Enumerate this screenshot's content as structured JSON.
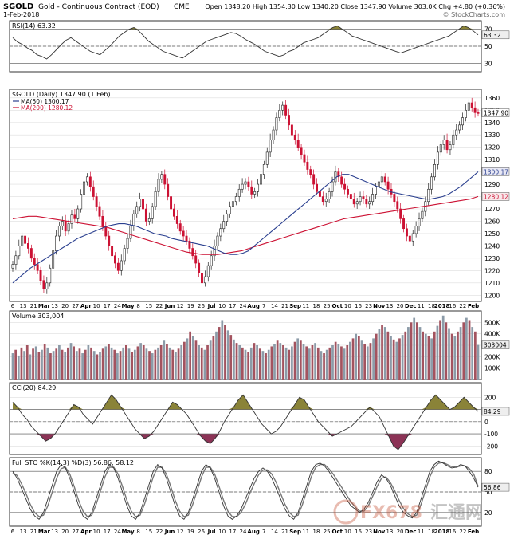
{
  "header": {
    "symbol": "$GOLD",
    "name": "Gold - Continuous Contract (EOD)",
    "exchange": "CME",
    "date": "1-Feb-2018",
    "ohlc": "Open 1348.20  High 1354.30  Low 1340.20  Close 1347.90  Volume 303.0K  Chg +4.80 (+0.36%)",
    "watermark": "© StockCharts.com"
  },
  "colors": {
    "up": "#222222",
    "down": "#cc1133",
    "ma50": "#2a3f8f",
    "ma200": "#cc1133",
    "volume_up": "#8c9ba8",
    "volume_down": "#a3535f",
    "osc_fill": "#8a8338",
    "osc_fill_low": "#8c3356",
    "sto_k": "#333333",
    "sto_d": "#777777",
    "grid": "#dddddd",
    "frame": "#333333"
  },
  "chart_data": [
    {
      "type": "line",
      "title": "RSI(14) 63.32",
      "value_label": "63.32",
      "ylim": [
        20,
        80
      ],
      "yticks": [
        "30",
        "50",
        "70"
      ],
      "levels": [
        30,
        70
      ],
      "series": [
        {
          "values": [
            60,
            55,
            52,
            48,
            45,
            40,
            38,
            35,
            40,
            46,
            52,
            57,
            60,
            56,
            52,
            48,
            44,
            42,
            40,
            45,
            50,
            56,
            62,
            66,
            70,
            72,
            68,
            62,
            56,
            52,
            48,
            44,
            42,
            40,
            38,
            36,
            40,
            44,
            48,
            52,
            56,
            58,
            60,
            62,
            64,
            66,
            65,
            62,
            58,
            55,
            52,
            48,
            44,
            42,
            40,
            38,
            40,
            44,
            46,
            50,
            54,
            56,
            58,
            60,
            64,
            68,
            72,
            74,
            70,
            66,
            62,
            60,
            58,
            56,
            54,
            52,
            50,
            48,
            46,
            44,
            42,
            44,
            46,
            48,
            50,
            52,
            54,
            56,
            58,
            60,
            62,
            66,
            70,
            74,
            72,
            68,
            63.32
          ]
        }
      ]
    },
    {
      "type": "candlestick",
      "title": "$GOLD (Daily) 1347.90 (1 Feb)",
      "ma50_label": "MA(50) 1300.17",
      "ma200_label": "MA(200) 1280.12",
      "close_label": "1347.90",
      "ma50_tag": "1300.17",
      "ma200_tag": "1280.12",
      "ylim": [
        1195,
        1367
      ],
      "yticks": [
        "1200",
        "1210",
        "1220",
        "1230",
        "1240",
        "1250",
        "1260",
        "1270",
        "1280",
        "1290",
        "1300",
        "1310",
        "1320",
        "1330",
        "1340",
        "1350",
        "1360"
      ],
      "close": [
        1225,
        1232,
        1240,
        1248,
        1242,
        1238,
        1230,
        1225,
        1220,
        1212,
        1205,
        1210,
        1222,
        1236,
        1248,
        1256,
        1260,
        1252,
        1258,
        1265,
        1262,
        1270,
        1282,
        1292,
        1296,
        1288,
        1280,
        1272,
        1264,
        1256,
        1248,
        1240,
        1232,
        1226,
        1220,
        1228,
        1238,
        1246,
        1256,
        1266,
        1272,
        1278,
        1270,
        1260,
        1262,
        1272,
        1284,
        1294,
        1298,
        1290,
        1280,
        1270,
        1264,
        1258,
        1252,
        1248,
        1244,
        1238,
        1232,
        1226,
        1218,
        1210,
        1215,
        1224,
        1232,
        1240,
        1248,
        1254,
        1260,
        1266,
        1272,
        1276,
        1280,
        1286,
        1290,
        1292,
        1288,
        1282,
        1284,
        1290,
        1298,
        1306,
        1316,
        1326,
        1334,
        1344,
        1350,
        1354,
        1346,
        1338,
        1330,
        1326,
        1320,
        1314,
        1308,
        1302,
        1298,
        1290,
        1284,
        1280,
        1276,
        1278,
        1284,
        1292,
        1300,
        1296,
        1290,
        1286,
        1282,
        1278,
        1274,
        1276,
        1280,
        1278,
        1274,
        1276,
        1282,
        1288,
        1292,
        1296,
        1292,
        1286,
        1282,
        1276,
        1270,
        1262,
        1254,
        1248,
        1244,
        1250,
        1256,
        1262,
        1268,
        1276,
        1286,
        1296,
        1306,
        1316,
        1322,
        1326,
        1318,
        1322,
        1330,
        1334,
        1338,
        1344,
        1350,
        1356,
        1352,
        1348,
        1347.9
      ],
      "ma50": [
        1210,
        1214,
        1218,
        1222,
        1225,
        1228,
        1231,
        1234,
        1237,
        1240,
        1243,
        1246,
        1248,
        1250,
        1252,
        1254,
        1256,
        1257,
        1258,
        1258,
        1257,
        1256,
        1254,
        1252,
        1250,
        1249,
        1248,
        1246,
        1245,
        1244,
        1243,
        1242,
        1241,
        1240,
        1238,
        1236,
        1234,
        1233,
        1233,
        1234,
        1236,
        1240,
        1244,
        1248,
        1252,
        1256,
        1260,
        1264,
        1268,
        1272,
        1276,
        1280,
        1284,
        1288,
        1292,
        1296,
        1298,
        1298,
        1296,
        1294,
        1292,
        1290,
        1288,
        1286,
        1284,
        1283,
        1282,
        1281,
        1280,
        1279,
        1278,
        1278,
        1279,
        1280,
        1282,
        1285,
        1288,
        1292,
        1296,
        1300.17
      ],
      "ma200": [
        1262,
        1263,
        1264,
        1264,
        1263,
        1262,
        1261,
        1260,
        1259,
        1258,
        1257,
        1256,
        1255,
        1253,
        1251,
        1249,
        1247,
        1245,
        1243,
        1241,
        1239,
        1237,
        1235,
        1234,
        1233,
        1233,
        1233,
        1234,
        1235,
        1236,
        1238,
        1240,
        1242,
        1244,
        1246,
        1248,
        1250,
        1252,
        1254,
        1256,
        1258,
        1260,
        1262,
        1263,
        1264,
        1265,
        1266,
        1267,
        1268,
        1269,
        1270,
        1271,
        1272,
        1273,
        1274,
        1275,
        1276,
        1277,
        1278,
        1280.12
      ]
    },
    {
      "type": "bar",
      "title": "Volume 303,004",
      "value_label": "303004",
      "ylim": [
        0,
        600
      ],
      "yticks": [
        "100K",
        "200K",
        "300K",
        "400K",
        "500K"
      ],
      "values": [
        230,
        260,
        210,
        280,
        250,
        300,
        220,
        270,
        290,
        240,
        260,
        310,
        280,
        230,
        250,
        270,
        300,
        260,
        240,
        280,
        320,
        290,
        250,
        270,
        230,
        260,
        300,
        280,
        250,
        220,
        240,
        270,
        290,
        310,
        280,
        260,
        230,
        250,
        280,
        300,
        270,
        240,
        260,
        290,
        320,
        300,
        270,
        250,
        230,
        260,
        280,
        300,
        340,
        310,
        280,
        260,
        240,
        270,
        300,
        330,
        360,
        420,
        380,
        340,
        300,
        280,
        260,
        300,
        340,
        380,
        420,
        460,
        520,
        480,
        430,
        390,
        350,
        320,
        300,
        280,
        260,
        240,
        280,
        320,
        300,
        270,
        250,
        230,
        260,
        290,
        310,
        340,
        320,
        300,
        280,
        260,
        290,
        330,
        360,
        340,
        310,
        290,
        270,
        300,
        320,
        280,
        250,
        230,
        260,
        280,
        300,
        330,
        310,
        290,
        270,
        300,
        330,
        360,
        400,
        380,
        340,
        310,
        290,
        320,
        360,
        400,
        440,
        480,
        460,
        420,
        380,
        350,
        330,
        360,
        390,
        420,
        460,
        500,
        540,
        500,
        460,
        420,
        400,
        380,
        360,
        420,
        470,
        520,
        560,
        500,
        450,
        400,
        380,
        420,
        460,
        500,
        540,
        520,
        460,
        420,
        303
      ]
    },
    {
      "type": "line",
      "title": "CCI(20) 84.29",
      "value_label": "84.29",
      "ylim": [
        -270,
        320
      ],
      "yticks": [
        "-200",
        "-100",
        "0",
        "100",
        "200"
      ],
      "levels": [
        -100,
        100
      ],
      "series": [
        {
          "values": [
            160,
            120,
            60,
            20,
            -40,
            -80,
            -120,
            -160,
            -140,
            -100,
            -40,
            20,
            80,
            140,
            120,
            60,
            20,
            -20,
            40,
            100,
            160,
            220,
            180,
            120,
            60,
            0,
            -60,
            -100,
            -140,
            -120,
            -80,
            -20,
            40,
            100,
            160,
            140,
            100,
            60,
            0,
            -60,
            -120,
            -160,
            -180,
            -140,
            -80,
            0,
            60,
            120,
            180,
            220,
            160,
            100,
            40,
            -20,
            -60,
            -100,
            -80,
            -40,
            20,
            80,
            140,
            200,
            180,
            120,
            60,
            0,
            -40,
            -80,
            -120,
            -100,
            -80,
            -60,
            -40,
            0,
            40,
            80,
            120,
            80,
            40,
            -40,
            -120,
            -200,
            -230,
            -180,
            -120,
            -60,
            0,
            60,
            120,
            180,
            220,
            180,
            140,
            100,
            120,
            160,
            200,
            160,
            120,
            84.29
          ]
        }
      ]
    },
    {
      "type": "line",
      "title": "Full STO %K(14,3) %D(3) 56.86, 58.12",
      "value_label": "56.86",
      "ylim": [
        0,
        100
      ],
      "yticks": [
        "20",
        "50",
        "80"
      ],
      "levels": [
        20,
        50,
        80
      ],
      "series": [
        {
          "name": "%K(14,3)",
          "values": [
            80,
            70,
            55,
            40,
            25,
            15,
            10,
            20,
            40,
            60,
            80,
            90,
            85,
            70,
            50,
            30,
            15,
            10,
            20,
            40,
            60,
            80,
            90,
            85,
            70,
            50,
            30,
            15,
            10,
            20,
            40,
            60,
            80,
            90,
            85,
            70,
            50,
            30,
            15,
            10,
            20,
            40,
            60,
            80,
            90,
            85,
            70,
            50,
            30,
            15,
            10,
            15,
            25,
            40,
            55,
            70,
            80,
            85,
            80,
            70,
            55,
            40,
            25,
            15,
            10,
            20,
            40,
            60,
            80,
            90,
            92,
            88,
            80,
            70,
            60,
            50,
            40,
            30,
            25,
            20,
            25,
            35,
            50,
            65,
            75,
            70,
            60,
            45,
            30,
            20,
            15,
            12,
            20,
            40,
            60,
            80,
            90,
            95,
            92,
            88,
            85,
            86,
            90,
            88,
            80,
            70,
            56.86
          ]
        },
        {
          "name": "%D(3)",
          "values": [
            78,
            74,
            62,
            48,
            32,
            20,
            14,
            16,
            30,
            50,
            70,
            84,
            86,
            76,
            58,
            38,
            22,
            14,
            16,
            32,
            52,
            72,
            86,
            86,
            76,
            58,
            38,
            22,
            14,
            16,
            32,
            52,
            72,
            86,
            86,
            76,
            58,
            38,
            22,
            14,
            16,
            32,
            52,
            72,
            86,
            86,
            76,
            58,
            38,
            22,
            14,
            14,
            20,
            32,
            48,
            62,
            75,
            82,
            82,
            76,
            64,
            48,
            32,
            20,
            14,
            16,
            32,
            52,
            72,
            86,
            90,
            90,
            84,
            76,
            66,
            56,
            46,
            36,
            28,
            22,
            22,
            30,
            44,
            58,
            70,
            72,
            64,
            52,
            38,
            26,
            18,
            14,
            16,
            32,
            52,
            72,
            86,
            92,
            93,
            90,
            87,
            86,
            88,
            88,
            84,
            76,
            58.12
          ]
        }
      ]
    }
  ],
  "x_axis": {
    "labels": [
      "6",
      "13",
      "21",
      "Mar",
      "13",
      "20",
      "27",
      "Apr",
      "10",
      "17",
      "24",
      "May",
      "8",
      "15",
      "22",
      "Jun",
      "12",
      "19",
      "26",
      "Jul",
      "10",
      "17",
      "24",
      "Aug",
      "7",
      "14",
      "21",
      "Sep",
      "11",
      "18",
      "25",
      "Oct",
      "10",
      "16",
      "23",
      "Nov",
      "13",
      "20",
      "Dec",
      "11",
      "18",
      "2018",
      "16",
      "22",
      "Feb"
    ]
  },
  "footer": {
    "watermark_brand": "FX678",
    "watermark_cn": "汇通网"
  }
}
